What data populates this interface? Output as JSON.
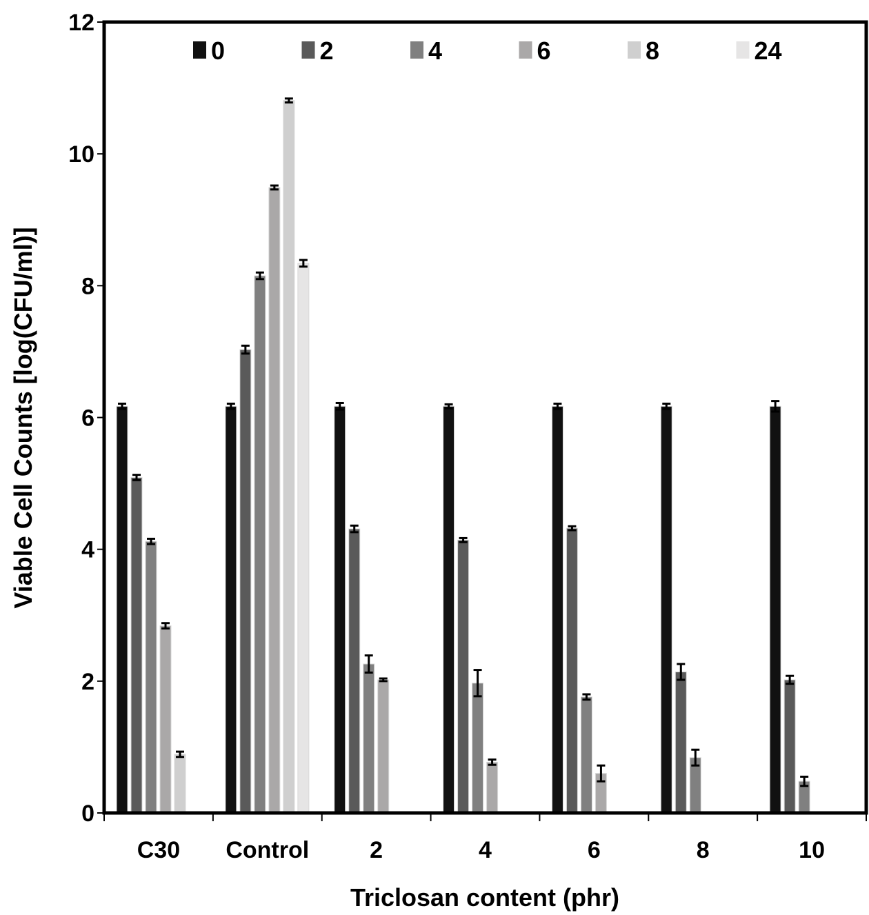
{
  "chart_data": {
    "type": "bar",
    "title": "",
    "xlabel": "Triclosan content (phr)",
    "ylabel": "Viable Cell Counts [log(CFU/ml)]",
    "ylim": [
      0,
      12
    ],
    "yticks": [
      0,
      2,
      4,
      6,
      8,
      10,
      12
    ],
    "grid": false,
    "legend_position": "top",
    "categories": [
      "C30",
      "Control",
      "2",
      "4",
      "6",
      "8",
      "10"
    ],
    "series": [
      {
        "name": "0",
        "color": "#111111",
        "values": [
          6.17,
          6.17,
          6.17,
          6.17,
          6.17,
          6.17,
          6.17
        ],
        "errors": [
          0.04,
          0.04,
          0.05,
          0.03,
          0.04,
          0.04,
          0.08
        ]
      },
      {
        "name": "2",
        "color": "#5a5a5a",
        "values": [
          5.09,
          7.03,
          4.31,
          4.14,
          4.32,
          2.14,
          2.02
        ],
        "errors": [
          0.04,
          0.06,
          0.05,
          0.03,
          0.03,
          0.12,
          0.06
        ]
      },
      {
        "name": "4",
        "color": "#808080",
        "values": [
          4.12,
          8.15,
          2.26,
          1.97,
          1.76,
          0.84,
          0.48
        ],
        "errors": [
          0.04,
          0.05,
          0.13,
          0.2,
          0.04,
          0.12,
          0.07
        ]
      },
      {
        "name": "6",
        "color": "#aaa8a8",
        "values": [
          2.84,
          9.49,
          2.02,
          0.77,
          0.6,
          null,
          null
        ],
        "errors": [
          0.04,
          0.03,
          0.02,
          0.04,
          0.12,
          null,
          null
        ]
      },
      {
        "name": "8",
        "color": "#cfcfcf",
        "values": [
          0.89,
          10.81,
          null,
          null,
          null,
          null,
          null
        ],
        "errors": [
          0.04,
          0.03,
          null,
          null,
          null,
          null,
          null
        ]
      },
      {
        "name": "24",
        "color": "#e6e5e5",
        "values": [
          null,
          8.34,
          null,
          null,
          null,
          null,
          null
        ],
        "errors": [
          null,
          0.05,
          null,
          null,
          null,
          null,
          null
        ]
      }
    ]
  }
}
